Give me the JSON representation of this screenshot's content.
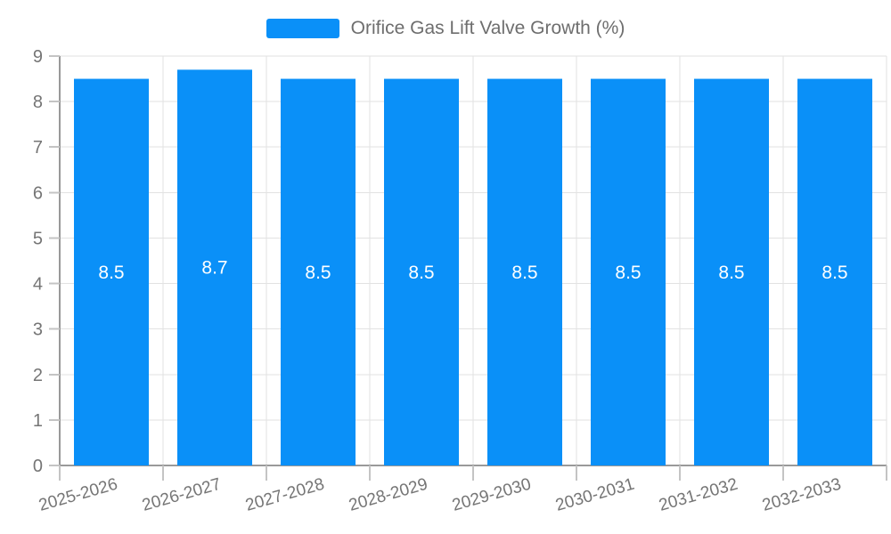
{
  "legend": {
    "label": "Orifice Gas Lift Valve Growth (%)"
  },
  "chart_data": {
    "type": "bar",
    "title": "Orifice Gas Lift Valve Growth (%)",
    "categories": [
      "2025-2026",
      "2026-2027",
      "2027-2028",
      "2028-2029",
      "2029-2030",
      "2030-2031",
      "2031-2032",
      "2032-2033"
    ],
    "values": [
      8.5,
      8.7,
      8.5,
      8.5,
      8.5,
      8.5,
      8.5,
      8.5
    ],
    "bar_labels": [
      "8.5",
      "8.7",
      "8.5",
      "8.5",
      "8.5",
      "8.5",
      "8.5",
      "8.5"
    ],
    "xlabel": "",
    "ylabel": "",
    "ylim": [
      0,
      9
    ],
    "yticks": [
      0,
      1,
      2,
      3,
      4,
      5,
      6,
      7,
      8,
      9
    ],
    "grid": true,
    "legend_position": "top-center",
    "x_label_rotation_deg": -16,
    "value_label_position": "inside-center",
    "colors": {
      "bar": "#0a90f8",
      "grid": "#e2e2e2",
      "axis": "#999999",
      "tick": "#c4c4c4",
      "tick_label": "#757575",
      "legend_text": "#6e6e6e",
      "value_label": "#ffffff"
    }
  }
}
